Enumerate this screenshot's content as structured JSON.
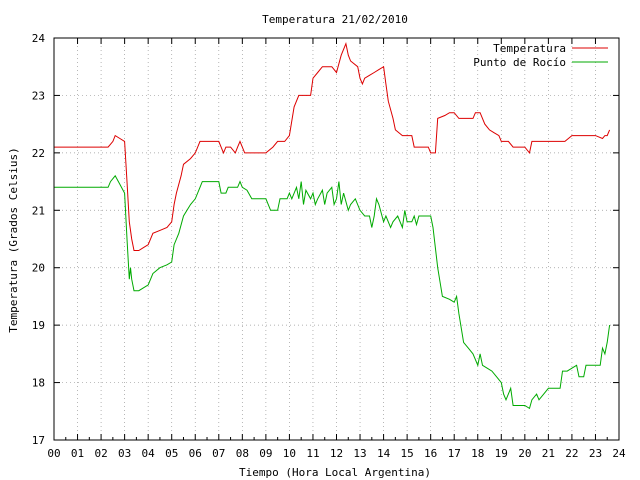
{
  "chart_data": {
    "type": "line",
    "title": "Temperatura 21/02/2010",
    "xlabel": "Tiempo (Hora Local Argentina)",
    "ylabel": "Temperatura (Grados Celsius)",
    "xlim": [
      0,
      24
    ],
    "ylim": [
      17,
      24
    ],
    "x_ticks": [
      0,
      1,
      2,
      3,
      4,
      5,
      6,
      7,
      8,
      9,
      10,
      11,
      12,
      13,
      14,
      15,
      16,
      17,
      18,
      19,
      20,
      21,
      22,
      23,
      24
    ],
    "x_tick_labels": [
      "00",
      "01",
      "02",
      "03",
      "04",
      "05",
      "06",
      "07",
      "08",
      "09",
      "10",
      "11",
      "12",
      "13",
      "14",
      "15",
      "16",
      "17",
      "18",
      "19",
      "20",
      "21",
      "22",
      "23",
      "24"
    ],
    "y_ticks": [
      17,
      18,
      19,
      20,
      21,
      22,
      23,
      24
    ],
    "y_tick_labels": [
      "17",
      "18",
      "19",
      "20",
      "21",
      "22",
      "23",
      "24"
    ],
    "grid": true,
    "legend_position": "top-right",
    "colors": {
      "temperatura": "#dd0000",
      "punto_rocio": "#00aa00",
      "grid": "#999999",
      "axis": "#000000"
    },
    "series": [
      {
        "name": "Temperatura",
        "color": "#dd0000",
        "points": [
          [
            0.0,
            22.1
          ],
          [
            1.0,
            22.1
          ],
          [
            2.0,
            22.1
          ],
          [
            2.3,
            22.1
          ],
          [
            2.5,
            22.2
          ],
          [
            2.6,
            22.3
          ],
          [
            2.8,
            22.25
          ],
          [
            3.0,
            22.2
          ],
          [
            3.1,
            21.5
          ],
          [
            3.2,
            20.8
          ],
          [
            3.3,
            20.5
          ],
          [
            3.4,
            20.3
          ],
          [
            3.6,
            20.3
          ],
          [
            3.8,
            20.35
          ],
          [
            4.0,
            20.4
          ],
          [
            4.2,
            20.6
          ],
          [
            4.5,
            20.65
          ],
          [
            4.8,
            20.7
          ],
          [
            5.0,
            20.8
          ],
          [
            5.1,
            21.1
          ],
          [
            5.2,
            21.3
          ],
          [
            5.4,
            21.6
          ],
          [
            5.5,
            21.8
          ],
          [
            5.8,
            21.9
          ],
          [
            6.0,
            22.0
          ],
          [
            6.2,
            22.2
          ],
          [
            6.5,
            22.2
          ],
          [
            7.0,
            22.2
          ],
          [
            7.1,
            22.1
          ],
          [
            7.2,
            22.0
          ],
          [
            7.3,
            22.1
          ],
          [
            7.5,
            22.1
          ],
          [
            7.7,
            22.0
          ],
          [
            7.8,
            22.1
          ],
          [
            7.9,
            22.2
          ],
          [
            8.0,
            22.1
          ],
          [
            8.1,
            22.0
          ],
          [
            8.5,
            22.0
          ],
          [
            9.0,
            22.0
          ],
          [
            9.3,
            22.1
          ],
          [
            9.5,
            22.2
          ],
          [
            9.8,
            22.2
          ],
          [
            10.0,
            22.3
          ],
          [
            10.2,
            22.8
          ],
          [
            10.4,
            23.0
          ],
          [
            10.6,
            23.0
          ],
          [
            10.9,
            23.0
          ],
          [
            11.0,
            23.3
          ],
          [
            11.2,
            23.4
          ],
          [
            11.4,
            23.5
          ],
          [
            11.8,
            23.5
          ],
          [
            12.0,
            23.4
          ],
          [
            12.2,
            23.7
          ],
          [
            12.4,
            23.9
          ],
          [
            12.5,
            23.7
          ],
          [
            12.6,
            23.6
          ],
          [
            12.9,
            23.5
          ],
          [
            13.0,
            23.3
          ],
          [
            13.1,
            23.2
          ],
          [
            13.2,
            23.3
          ],
          [
            13.4,
            23.35
          ],
          [
            13.6,
            23.4
          ],
          [
            13.8,
            23.45
          ],
          [
            14.0,
            23.5
          ],
          [
            14.1,
            23.2
          ],
          [
            14.2,
            22.9
          ],
          [
            14.4,
            22.6
          ],
          [
            14.5,
            22.4
          ],
          [
            14.8,
            22.3
          ],
          [
            15.0,
            22.3
          ],
          [
            15.2,
            22.3
          ],
          [
            15.3,
            22.1
          ],
          [
            15.6,
            22.1
          ],
          [
            15.9,
            22.1
          ],
          [
            16.0,
            22.0
          ],
          [
            16.2,
            22.0
          ],
          [
            16.3,
            22.6
          ],
          [
            16.6,
            22.65
          ],
          [
            16.8,
            22.7
          ],
          [
            17.0,
            22.7
          ],
          [
            17.2,
            22.6
          ],
          [
            17.5,
            22.6
          ],
          [
            17.8,
            22.6
          ],
          [
            17.9,
            22.7
          ],
          [
            18.1,
            22.7
          ],
          [
            18.3,
            22.5
          ],
          [
            18.5,
            22.4
          ],
          [
            18.7,
            22.35
          ],
          [
            18.9,
            22.3
          ],
          [
            19.0,
            22.2
          ],
          [
            19.3,
            22.2
          ],
          [
            19.5,
            22.1
          ],
          [
            19.8,
            22.1
          ],
          [
            20.0,
            22.1
          ],
          [
            20.2,
            22.0
          ],
          [
            20.3,
            22.2
          ],
          [
            20.6,
            22.2
          ],
          [
            21.0,
            22.2
          ],
          [
            21.5,
            22.2
          ],
          [
            21.7,
            22.2
          ],
          [
            22.0,
            22.3
          ],
          [
            22.5,
            22.3
          ],
          [
            23.0,
            22.3
          ],
          [
            23.3,
            22.25
          ],
          [
            23.4,
            22.3
          ],
          [
            23.5,
            22.3
          ],
          [
            23.6,
            22.4
          ]
        ]
      },
      {
        "name": "Punto de Rocío",
        "color": "#00aa00",
        "points": [
          [
            0.0,
            21.4
          ],
          [
            1.0,
            21.4
          ],
          [
            2.0,
            21.4
          ],
          [
            2.3,
            21.4
          ],
          [
            2.4,
            21.5
          ],
          [
            2.6,
            21.6
          ],
          [
            2.8,
            21.45
          ],
          [
            3.0,
            21.3
          ],
          [
            3.1,
            20.5
          ],
          [
            3.2,
            19.8
          ],
          [
            3.25,
            20.0
          ],
          [
            3.3,
            19.8
          ],
          [
            3.4,
            19.6
          ],
          [
            3.6,
            19.6
          ],
          [
            3.8,
            19.65
          ],
          [
            4.0,
            19.7
          ],
          [
            4.2,
            19.9
          ],
          [
            4.5,
            20.0
          ],
          [
            4.8,
            20.05
          ],
          [
            5.0,
            20.1
          ],
          [
            5.1,
            20.4
          ],
          [
            5.3,
            20.6
          ],
          [
            5.5,
            20.9
          ],
          [
            5.8,
            21.1
          ],
          [
            6.0,
            21.2
          ],
          [
            6.2,
            21.4
          ],
          [
            6.3,
            21.5
          ],
          [
            6.6,
            21.5
          ],
          [
            7.0,
            21.5
          ],
          [
            7.1,
            21.3
          ],
          [
            7.3,
            21.3
          ],
          [
            7.4,
            21.4
          ],
          [
            7.6,
            21.4
          ],
          [
            7.8,
            21.4
          ],
          [
            7.9,
            21.5
          ],
          [
            8.0,
            21.4
          ],
          [
            8.2,
            21.35
          ],
          [
            8.4,
            21.2
          ],
          [
            8.7,
            21.2
          ],
          [
            9.0,
            21.2
          ],
          [
            9.2,
            21.0
          ],
          [
            9.5,
            21.0
          ],
          [
            9.6,
            21.2
          ],
          [
            9.9,
            21.2
          ],
          [
            10.0,
            21.3
          ],
          [
            10.1,
            21.2
          ],
          [
            10.3,
            21.4
          ],
          [
            10.4,
            21.2
          ],
          [
            10.5,
            21.5
          ],
          [
            10.6,
            21.1
          ],
          [
            10.7,
            21.35
          ],
          [
            10.9,
            21.2
          ],
          [
            11.0,
            21.3
          ],
          [
            11.1,
            21.1
          ],
          [
            11.2,
            21.2
          ],
          [
            11.4,
            21.35
          ],
          [
            11.5,
            21.1
          ],
          [
            11.6,
            21.3
          ],
          [
            11.8,
            21.4
          ],
          [
            11.9,
            21.1
          ],
          [
            12.0,
            21.2
          ],
          [
            12.1,
            21.5
          ],
          [
            12.2,
            21.1
          ],
          [
            12.3,
            21.3
          ],
          [
            12.5,
            21.0
          ],
          [
            12.6,
            21.1
          ],
          [
            12.8,
            21.2
          ],
          [
            13.0,
            21.0
          ],
          [
            13.2,
            20.9
          ],
          [
            13.4,
            20.9
          ],
          [
            13.5,
            20.7
          ],
          [
            13.6,
            20.9
          ],
          [
            13.7,
            21.2
          ],
          [
            13.8,
            21.1
          ],
          [
            14.0,
            20.8
          ],
          [
            14.1,
            20.9
          ],
          [
            14.3,
            20.7
          ],
          [
            14.4,
            20.8
          ],
          [
            14.6,
            20.9
          ],
          [
            14.8,
            20.7
          ],
          [
            14.9,
            21.0
          ],
          [
            15.0,
            20.8
          ],
          [
            15.2,
            20.8
          ],
          [
            15.3,
            20.9
          ],
          [
            15.4,
            20.75
          ],
          [
            15.5,
            20.9
          ],
          [
            15.8,
            20.9
          ],
          [
            16.0,
            20.9
          ],
          [
            16.1,
            20.7
          ],
          [
            16.3,
            20.0
          ],
          [
            16.5,
            19.5
          ],
          [
            16.8,
            19.45
          ],
          [
            17.0,
            19.4
          ],
          [
            17.1,
            19.5
          ],
          [
            17.2,
            19.2
          ],
          [
            17.4,
            18.7
          ],
          [
            17.6,
            18.6
          ],
          [
            17.8,
            18.5
          ],
          [
            18.0,
            18.3
          ],
          [
            18.1,
            18.5
          ],
          [
            18.2,
            18.3
          ],
          [
            18.4,
            18.25
          ],
          [
            18.6,
            18.2
          ],
          [
            18.8,
            18.1
          ],
          [
            19.0,
            18.0
          ],
          [
            19.1,
            17.8
          ],
          [
            19.2,
            17.7
          ],
          [
            19.4,
            17.9
          ],
          [
            19.5,
            17.6
          ],
          [
            19.7,
            17.6
          ],
          [
            20.0,
            17.6
          ],
          [
            20.2,
            17.55
          ],
          [
            20.3,
            17.7
          ],
          [
            20.5,
            17.8
          ],
          [
            20.6,
            17.7
          ],
          [
            20.8,
            17.8
          ],
          [
            21.0,
            17.9
          ],
          [
            21.3,
            17.9
          ],
          [
            21.5,
            17.9
          ],
          [
            21.6,
            18.2
          ],
          [
            21.8,
            18.2
          ],
          [
            22.0,
            18.25
          ],
          [
            22.2,
            18.3
          ],
          [
            22.3,
            18.1
          ],
          [
            22.5,
            18.1
          ],
          [
            22.6,
            18.3
          ],
          [
            22.8,
            18.3
          ],
          [
            23.0,
            18.3
          ],
          [
            23.2,
            18.3
          ],
          [
            23.3,
            18.6
          ],
          [
            23.4,
            18.5
          ],
          [
            23.5,
            18.7
          ],
          [
            23.6,
            19.0
          ]
        ]
      }
    ]
  }
}
